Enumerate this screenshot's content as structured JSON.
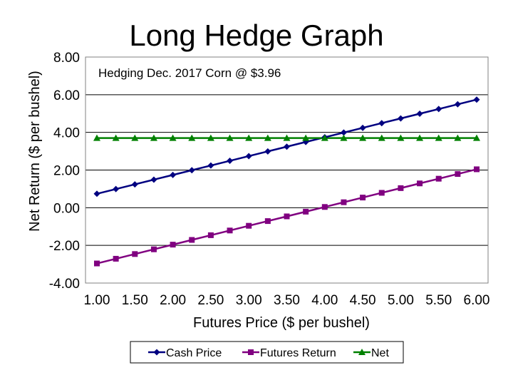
{
  "page_title": "Long Hedge Graph",
  "chart_data": {
    "type": "line",
    "annotation": "Hedging Dec. 2017 Corn @ $3.96",
    "xlabel": "Futures Price ($ per bushel)",
    "ylabel": "Net Return ($ per bushel)",
    "xlim": [
      0.85,
      6.15
    ],
    "ylim": [
      -4.0,
      8.0
    ],
    "x_ticks": [
      1.0,
      1.5,
      2.0,
      2.5,
      3.0,
      3.5,
      4.0,
      4.5,
      5.0,
      5.5,
      6.0
    ],
    "x_tick_labels": [
      "1.00",
      "1.50",
      "2.00",
      "2.50",
      "3.00",
      "3.50",
      "4.00",
      "4.50",
      "5.00",
      "5.50",
      "6.00"
    ],
    "y_ticks": [
      8.0,
      6.0,
      4.0,
      2.0,
      0.0,
      -2.0,
      -4.0
    ],
    "y_tick_labels": [
      "8.00",
      "6.00",
      "4.00",
      "2.00",
      "0.00",
      "-2.00",
      "-4.00"
    ],
    "grid": "horizontal",
    "legend_position": "bottom",
    "x": [
      1.0,
      1.25,
      1.5,
      1.75,
      2.0,
      2.25,
      2.5,
      2.75,
      3.0,
      3.25,
      3.5,
      3.75,
      4.0,
      4.25,
      4.5,
      4.75,
      5.0,
      5.25,
      5.5,
      5.75,
      6.0
    ],
    "series": [
      {
        "name": "Cash Price",
        "color": "#000080",
        "marker": "diamond",
        "values": [
          0.74,
          0.99,
          1.24,
          1.49,
          1.74,
          1.99,
          2.24,
          2.49,
          2.74,
          2.99,
          3.24,
          3.49,
          3.74,
          3.99,
          4.24,
          4.49,
          4.74,
          4.99,
          5.24,
          5.49,
          5.74
        ]
      },
      {
        "name": "Futures Return",
        "color": "#800080",
        "marker": "square",
        "values": [
          -2.96,
          -2.71,
          -2.46,
          -2.21,
          -1.96,
          -1.71,
          -1.46,
          -1.21,
          -0.96,
          -0.71,
          -0.46,
          -0.21,
          0.04,
          0.29,
          0.54,
          0.79,
          1.04,
          1.29,
          1.54,
          1.79,
          2.04
        ]
      },
      {
        "name": "Net",
        "color": "#008000",
        "marker": "triangle",
        "values": [
          3.7,
          3.7,
          3.7,
          3.7,
          3.7,
          3.7,
          3.7,
          3.7,
          3.7,
          3.7,
          3.7,
          3.7,
          3.7,
          3.7,
          3.7,
          3.7,
          3.7,
          3.7,
          3.7,
          3.7,
          3.7
        ]
      }
    ]
  }
}
